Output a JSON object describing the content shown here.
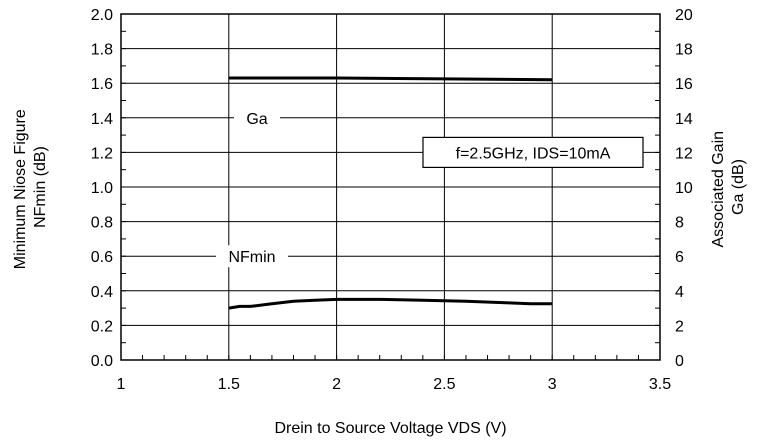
{
  "chart_data": {
    "type": "line",
    "title": "",
    "xlabel": "Drein to Source Voltage  VDS (V)",
    "ylabel_left": [
      "Minimum Niose Figure",
      "NFmin (dB)"
    ],
    "ylabel_right": [
      "Associated Gain",
      "Ga (dB)"
    ],
    "xlim": [
      1,
      3.5
    ],
    "ylim_left": [
      0,
      2.0
    ],
    "ylim_right": [
      0,
      20
    ],
    "x_ticks": [
      1,
      1.5,
      2,
      2.5,
      3,
      3.5
    ],
    "x_tick_labels": [
      "1",
      "1.5",
      "2",
      "2.5",
      "3",
      "3.5"
    ],
    "y_left_ticks": [
      0,
      0.2,
      0.4,
      0.6,
      0.8,
      1.0,
      1.2,
      1.4,
      1.6,
      1.8,
      2.0
    ],
    "y_left_tick_labels": [
      "0.0",
      "0.2",
      "0.4",
      "0.6",
      "0.8",
      "1.0",
      "1.2",
      "1.4",
      "1.6",
      "1.8",
      "2.0"
    ],
    "y_right_ticks": [
      0,
      2,
      4,
      6,
      8,
      10,
      12,
      14,
      16,
      18,
      20
    ],
    "y_right_tick_labels": [
      "0",
      "2",
      "4",
      "6",
      "8",
      "10",
      "12",
      "14",
      "16",
      "18",
      "20"
    ],
    "grid": true,
    "annotation": "f=2.5GHz, IDS=10mA",
    "series": [
      {
        "name": "NFmin",
        "axis": "left",
        "x": [
          1.5,
          1.55,
          1.6,
          1.7,
          1.8,
          1.9,
          2.0,
          2.2,
          2.4,
          2.6,
          2.8,
          2.9,
          3.0
        ],
        "y": [
          0.3,
          0.31,
          0.31,
          0.325,
          0.34,
          0.345,
          0.35,
          0.35,
          0.345,
          0.34,
          0.33,
          0.325,
          0.325
        ]
      },
      {
        "name": "Ga",
        "axis": "right",
        "x": [
          1.5,
          2.0,
          2.5,
          3.0
        ],
        "y": [
          16.3,
          16.3,
          16.25,
          16.2
        ]
      }
    ],
    "colors": {
      "line": "#000000",
      "grid": "#000000",
      "background": "#ffffff"
    }
  }
}
